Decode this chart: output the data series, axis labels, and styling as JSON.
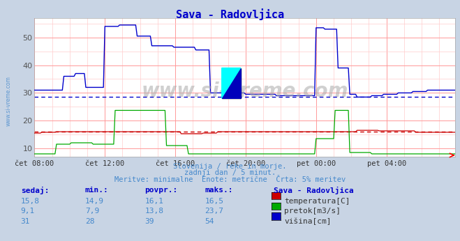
{
  "title": "Sava - Radovljica",
  "title_color": "#0000cc",
  "bg_color": "#c8d4e4",
  "plot_bg_color": "#ffffff",
  "grid_color_major": "#ff9999",
  "grid_color_minor": "#ffcccc",
  "xlim": [
    0,
    287
  ],
  "ylim": [
    7,
    57
  ],
  "yticks": [
    10,
    20,
    30,
    40,
    50
  ],
  "xtick_labels": [
    "čet 08:00",
    "čet 12:00",
    "čet 16:00",
    "čet 20:00",
    "pet 00:00",
    "pet 04:00"
  ],
  "xtick_positions": [
    0,
    48,
    96,
    144,
    192,
    240
  ],
  "watermark": "www.si-vreme.com",
  "subtitle1": "Slovenija / reke in morje.",
  "subtitle2": "zadnji dan / 5 minut.",
  "subtitle3": "Meritve: minimalne  Enote: metrične  Črta: 5% meritev",
  "subtitle_color": "#4488cc",
  "legend_title": "Sava - Radovljica",
  "legend_title_color": "#0000cc",
  "legend_items": [
    {
      "label": "temperatura[C]",
      "color": "#cc0000"
    },
    {
      "label": "pretok[m3/s]",
      "color": "#00aa00"
    },
    {
      "label": "višina[cm]",
      "color": "#0000cc"
    }
  ],
  "table_headers": [
    "sedaj:",
    "min.:",
    "povpr.:",
    "maks.:"
  ],
  "table_data": [
    [
      "15,8",
      "14,9",
      "16,1",
      "16,5"
    ],
    [
      "9,1",
      "7,9",
      "13,8",
      "23,7"
    ],
    [
      "31",
      "28",
      "39",
      "54"
    ]
  ],
  "table_color": "#4488cc",
  "avg_line_blue_y": 28.5,
  "avg_line_red_y": 16.0,
  "temp_color": "#cc0000",
  "flow_color": "#00aa00",
  "height_color": "#0000cc",
  "sidebar_color": "#4488cc",
  "sidebar_text": "www.si-vreme.com"
}
